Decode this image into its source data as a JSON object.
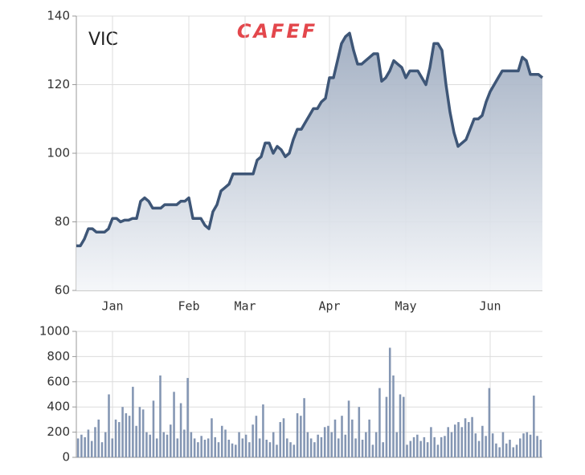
{
  "chart_data": [
    {
      "type": "area",
      "title": "VIC",
      "logo": "CAFEF",
      "color": "#3e5677",
      "categories": [
        null,
        null,
        null,
        null,
        null,
        null,
        null,
        null,
        null,
        "Jan",
        null,
        null,
        null,
        null,
        null,
        null,
        null,
        null,
        null,
        null,
        null,
        null,
        null,
        null,
        null,
        null,
        null,
        null,
        "Feb",
        null,
        null,
        null,
        null,
        null,
        null,
        null,
        null,
        null,
        null,
        null,
        null,
        null,
        "Mar",
        null,
        null,
        null,
        null,
        null,
        null,
        null,
        null,
        null,
        null,
        null,
        null,
        null,
        null,
        null,
        null,
        null,
        null,
        null,
        null,
        "Apr",
        null,
        null,
        null,
        null,
        null,
        null,
        null,
        null,
        null,
        null,
        null,
        null,
        null,
        null,
        null,
        null,
        null,
        null,
        "May",
        null,
        null,
        null,
        null,
        null,
        null,
        null,
        null,
        null,
        null,
        null,
        null,
        null,
        null,
        null,
        null,
        null,
        null,
        null,
        null,
        "Jun",
        null,
        null,
        null,
        null,
        null,
        null,
        null,
        null,
        null,
        null,
        null,
        null,
        null
      ],
      "values": [
        73,
        73,
        75,
        78,
        78,
        77,
        77,
        77,
        78,
        81,
        81,
        80,
        80.5,
        80.5,
        81,
        81,
        86,
        87,
        86,
        84,
        84,
        84,
        85,
        85,
        85,
        85,
        86,
        86,
        87,
        81,
        81,
        81,
        79,
        78,
        83,
        85,
        89,
        90,
        91,
        94,
        94,
        94,
        94,
        94,
        94,
        98,
        99,
        103,
        103,
        100,
        102,
        101,
        99,
        100,
        104,
        107,
        107,
        109,
        111,
        113,
        113,
        115,
        116,
        122,
        122,
        127,
        132,
        134,
        135,
        130,
        126,
        126,
        127,
        128,
        129,
        129,
        121,
        122,
        124,
        127,
        126,
        125,
        122,
        124,
        124,
        124,
        122,
        120,
        125,
        132,
        132,
        130,
        120,
        112,
        106,
        102,
        103,
        104,
        107,
        110,
        110,
        111,
        115,
        118,
        120,
        122,
        124,
        124,
        124,
        124,
        124,
        128,
        127,
        123,
        123,
        123,
        122
      ],
      "ylim": [
        60,
        140
      ],
      "yticks": [
        60,
        80,
        100,
        120,
        140
      ],
      "grid": true
    },
    {
      "type": "bar",
      "color": "#8496b3",
      "values": [
        150,
        180,
        160,
        220,
        130,
        240,
        300,
        120,
        200,
        500,
        150,
        300,
        280,
        400,
        350,
        330,
        560,
        250,
        400,
        380,
        200,
        180,
        450,
        150,
        650,
        200,
        180,
        260,
        520,
        150,
        430,
        220,
        630,
        200,
        150,
        120,
        170,
        140,
        150,
        310,
        160,
        120,
        250,
        220,
        140,
        110,
        100,
        200,
        150,
        180,
        120,
        260,
        330,
        150,
        420,
        140,
        120,
        200,
        100,
        280,
        310,
        150,
        120,
        100,
        350,
        330,
        470,
        200,
        150,
        120,
        180,
        160,
        240,
        250,
        200,
        300,
        150,
        330,
        180,
        450,
        300,
        150,
        400,
        140,
        200,
        300,
        100,
        200,
        550,
        120,
        480,
        870,
        650,
        200,
        500,
        480,
        100,
        130,
        160,
        180,
        130,
        160,
        120,
        240,
        160,
        100,
        160,
        170,
        240,
        200,
        260,
        280,
        240,
        310,
        280,
        320,
        190,
        130,
        250,
        170,
        550,
        190,
        110,
        80,
        200,
        110,
        140,
        80,
        100,
        150,
        190,
        200,
        180,
        490,
        170,
        140
      ],
      "ylim": [
        0,
        1000
      ],
      "yticks": [
        0,
        200,
        400,
        600,
        800,
        1000
      ],
      "grid": true
    }
  ]
}
